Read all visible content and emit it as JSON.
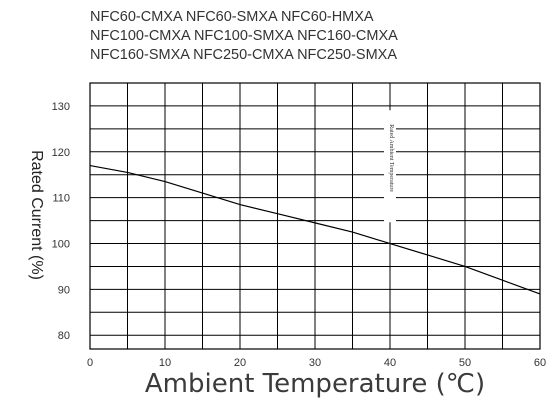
{
  "chart_data": {
    "type": "line",
    "title": "",
    "subtitle_lines": [
      "NFC60-CMXA NFC60-SMXA NFC60-HMXA",
      "NFC100-CMXA NFC100-SMXA NFC160-CMXA",
      "NFC160-SMXA NFC250-CMXA  NFC250-SMXA"
    ],
    "xlabel": "Ambient Temperature (℃)",
    "ylabel": "Rated Current (%)",
    "xlim": [
      0,
      60
    ],
    "ylim": [
      77,
      135
    ],
    "x_ticks": [
      0,
      10,
      20,
      30,
      40,
      50,
      60
    ],
    "y_ticks": [
      80,
      90,
      100,
      110,
      120,
      130
    ],
    "x_grid_step": 5,
    "y_grid_step": 5,
    "grid": true,
    "annotation": {
      "text": "Rated Ambient Temperature",
      "x": 40
    },
    "series": [
      {
        "x": [
          0,
          5,
          10,
          15,
          20,
          25,
          30,
          35,
          40,
          45,
          50,
          55,
          60
        ],
        "values": [
          117,
          115.5,
          113.5,
          111,
          108.5,
          106.5,
          104.5,
          102.5,
          100,
          97.5,
          95,
          92,
          89
        ]
      }
    ]
  }
}
